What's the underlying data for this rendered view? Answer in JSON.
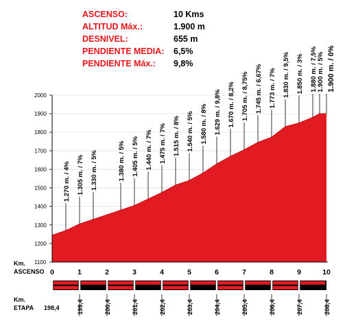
{
  "header": {
    "rows": [
      {
        "label": "ASCENSO:",
        "value": "10 Kms"
      },
      {
        "label": "ALTITUD Máx.:",
        "value": "1.900 m"
      },
      {
        "label": "DESNIVEL:",
        "value": "655 m"
      },
      {
        "label": "PENDIENTE MEDIA:",
        "value": "6,5%"
      },
      {
        "label": "PENDIENTE Máx.:",
        "value": "9,8%"
      }
    ]
  },
  "colors": {
    "accent": "#e8141b",
    "profile_fill": "#e21b22",
    "band_red": "#e21b22",
    "band_black": "#000000"
  },
  "chart_data": {
    "type": "area",
    "ylim": [
      1100,
      2000
    ],
    "yticks": [
      1100,
      1200,
      1300,
      1400,
      1500,
      1600,
      1700,
      1800,
      1900,
      2000
    ],
    "xlim": [
      0,
      10
    ],
    "km_axis_title": "Km.\nASCENSO",
    "km_ticks": [
      "0",
      "1",
      "2",
      "3",
      "4",
      "5",
      "6",
      "7",
      "8",
      "9",
      "10"
    ],
    "etapa_axis_title": "Km.\nETAPA",
    "etapa_ticks": [
      "198,4",
      "199,4",
      "200,4",
      "201,4",
      "202,4",
      "203,4",
      "204,4",
      "205,4",
      "206,4",
      "207,4",
      "208,4"
    ],
    "profile": [
      {
        "x": 0,
        "y": 1245
      },
      {
        "x": 0.5,
        "y": 1270
      },
      {
        "x": 1,
        "y": 1305
      },
      {
        "x": 1.5,
        "y": 1330
      },
      {
        "x": 2.5,
        "y": 1380
      },
      {
        "x": 3,
        "y": 1405
      },
      {
        "x": 3.5,
        "y": 1440
      },
      {
        "x": 4,
        "y": 1475
      },
      {
        "x": 4.5,
        "y": 1515
      },
      {
        "x": 5,
        "y": 1540
      },
      {
        "x": 5.5,
        "y": 1580
      },
      {
        "x": 6,
        "y": 1629
      },
      {
        "x": 6.5,
        "y": 1670
      },
      {
        "x": 7,
        "y": 1705
      },
      {
        "x": 7.5,
        "y": 1745
      },
      {
        "x": 8,
        "y": 1773
      },
      {
        "x": 8.5,
        "y": 1830
      },
      {
        "x": 9,
        "y": 1850
      },
      {
        "x": 9.5,
        "y": 1880
      },
      {
        "x": 9.75,
        "y": 1900
      },
      {
        "x": 10,
        "y": 1900
      }
    ],
    "annotations": [
      {
        "x": 0.5,
        "y": 1270,
        "text": "1.270 m. / 4%"
      },
      {
        "x": 1,
        "y": 1305,
        "text": "1.305 m. / 7%"
      },
      {
        "x": 1.5,
        "y": 1330,
        "text": "1.330 m. / 5%"
      },
      {
        "x": 2.5,
        "y": 1380,
        "text": "1.380 m. / 5%"
      },
      {
        "x": 3,
        "y": 1405,
        "text": "1.405 m. / 5%"
      },
      {
        "x": 3.5,
        "y": 1440,
        "text": "1.440 m. / 7%"
      },
      {
        "x": 4,
        "y": 1475,
        "text": "1.475 m. / 7%"
      },
      {
        "x": 4.5,
        "y": 1515,
        "text": "1.515 m. / 8%"
      },
      {
        "x": 5,
        "y": 1540,
        "text": "1.540 m. / 5%"
      },
      {
        "x": 5.5,
        "y": 1580,
        "text": "1.580 m. / 8%"
      },
      {
        "x": 6,
        "y": 1629,
        "text": "1.629 m. / 9,8%"
      },
      {
        "x": 6.5,
        "y": 1670,
        "text": "1.670 m. / 8,2%"
      },
      {
        "x": 7,
        "y": 1705,
        "text": "1.705 m. / 8,75%"
      },
      {
        "x": 7.5,
        "y": 1745,
        "text": "1.745 m. / 6,67%"
      },
      {
        "x": 8,
        "y": 1773,
        "text": "1.773 m. / 7%"
      },
      {
        "x": 8.5,
        "y": 1830,
        "text": "1.830 m. / 9,5%"
      },
      {
        "x": 9,
        "y": 1850,
        "text": "1.850 m. / 3%"
      },
      {
        "x": 9.5,
        "y": 1880,
        "text": "1.880 m. / 7,5%"
      },
      {
        "x": 9.75,
        "y": 1900,
        "text": "1.900 m. / 5%"
      },
      {
        "x": 10,
        "y": 1900,
        "text": "1.900 m. / 0%"
      }
    ]
  }
}
